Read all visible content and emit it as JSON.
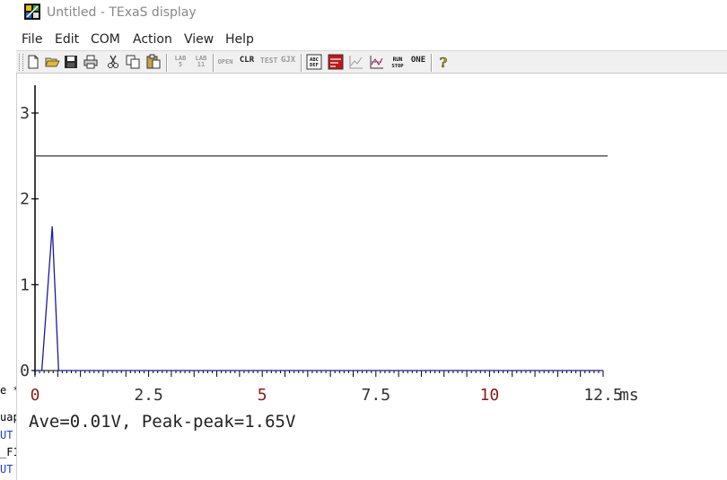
{
  "window": {
    "title": "Untitled - TExaS display"
  },
  "menu": [
    "File",
    "Edit",
    "COM",
    "Action",
    "View",
    "Help"
  ],
  "toolbar": {
    "groups": [
      [
        "new-icon",
        "open-icon",
        "save-icon",
        "print-icon",
        "cut-icon",
        "copy-icon",
        "paste-icon"
      ],
      [
        "lab5-icon",
        "lab11-icon"
      ],
      [
        "open-scope-icon",
        "clr-icon",
        "test-icon",
        "gjx-icon"
      ],
      [
        "abc-def-icon",
        "logo-red-icon",
        "line-chart-icon",
        "graph-icon",
        "run-stop-icon",
        "one-icon"
      ],
      [
        "help-icon"
      ]
    ],
    "text_icons": {
      "lab5": "LAB\n5",
      "lab11": "LAB\n11",
      "open": "OPEN",
      "clr": "CLR",
      "test": "TEST",
      "gjx": "GJX",
      "abcdef": "ABC\nDEF",
      "runstop": "RUN\nSTOP",
      "one": "ONE"
    }
  },
  "left_pane": {
    "fragments": [
      {
        "text": "e *",
        "color": "#222222"
      },
      {
        "text": "uap",
        "color": "#222222"
      },
      {
        "text": "UT",
        "color": "#1a3fd0"
      },
      {
        "text": "_F1",
        "color": "#222222"
      },
      {
        "text": "UT",
        "color": "#1a3fd0"
      }
    ]
  },
  "chart_data": {
    "type": "line",
    "x_unit": "ms",
    "xlim": [
      0,
      12.5
    ],
    "ylim": [
      0,
      3
    ],
    "x_ticks": [
      {
        "value": 0,
        "label": "0",
        "color": "#8b1a1a"
      },
      {
        "value": 2.5,
        "label": "2.5",
        "color": "#333333"
      },
      {
        "value": 5,
        "label": "5",
        "color": "#8b1a1a"
      },
      {
        "value": 7.5,
        "label": "7.5",
        "color": "#333333"
      },
      {
        "value": 10,
        "label": "10",
        "color": "#8b1a1a"
      },
      {
        "value": 12.5,
        "label": "12.5",
        "color": "#333333"
      }
    ],
    "y_ticks": [
      {
        "value": 0,
        "label": "0"
      },
      {
        "value": 1,
        "label": "1"
      },
      {
        "value": 2,
        "label": "2"
      },
      {
        "value": 3,
        "label": "3"
      }
    ],
    "reference_line": {
      "y": 2.5,
      "color": "#000000"
    },
    "series": [
      {
        "color": "#1a1aa0",
        "points": [
          [
            0,
            0
          ],
          [
            0.15,
            0
          ],
          [
            0.38,
            1.68
          ],
          [
            0.52,
            0
          ],
          [
            0.6,
            0
          ],
          [
            12.5,
            0
          ]
        ]
      }
    ]
  },
  "readout": "Ave=0.01V, Peak-peak=1.65V"
}
